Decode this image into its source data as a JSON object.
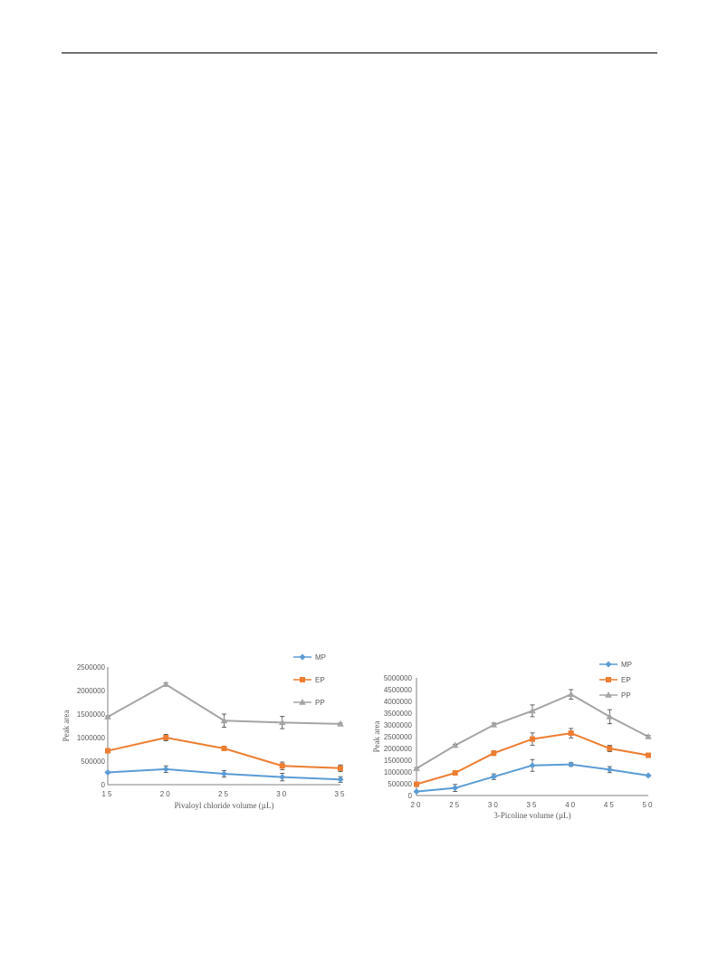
{
  "colors": {
    "MP": "#5b9bd5",
    "EP": "#ed7d31",
    "PP": "#a5a5a5",
    "axis": "#808080",
    "text": "#595959"
  },
  "chart_data": [
    {
      "type": "line",
      "xlabel": "Pivaloyl chloride volume (µL)",
      "ylabel": "Peak area",
      "categories": [
        "15",
        "20",
        "25",
        "30",
        "35"
      ],
      "yticks": [
        "0",
        "500000",
        "1000000",
        "1500000",
        "2000000",
        "2500000"
      ],
      "ylim": [
        0,
        2500000
      ],
      "legend_position": "top-right",
      "grid": false,
      "series": [
        {
          "name": "MP",
          "marker": "diamond",
          "values": [
            260000,
            330000,
            230000,
            160000,
            110000
          ],
          "errors": [
            20000,
            70000,
            70000,
            80000,
            60000
          ]
        },
        {
          "name": "EP",
          "marker": "square",
          "values": [
            720000,
            1000000,
            770000,
            400000,
            350000
          ],
          "errors": [
            30000,
            70000,
            40000,
            80000,
            70000
          ]
        },
        {
          "name": "PP",
          "marker": "triangle",
          "values": [
            1440000,
            2130000,
            1360000,
            1320000,
            1290000
          ],
          "errors": [
            20000,
            30000,
            140000,
            130000,
            20000
          ]
        }
      ]
    },
    {
      "type": "line",
      "xlabel": "3-Picoline volume (µL)",
      "ylabel": "Peak area",
      "categories": [
        "20",
        "25",
        "30",
        "35",
        "40",
        "45",
        "50"
      ],
      "yticks": [
        "0",
        "500000",
        "1000000",
        "1500000",
        "2000000",
        "2500000",
        "3000000",
        "3500000",
        "4000000",
        "4500000",
        "5000000"
      ],
      "ylim": [
        0,
        5000000
      ],
      "legend_position": "top-right",
      "grid": false,
      "series": [
        {
          "name": "MP",
          "marker": "diamond",
          "values": [
            170000,
            320000,
            800000,
            1280000,
            1320000,
            1100000,
            850000
          ],
          "errors": [
            30000,
            150000,
            120000,
            250000,
            80000,
            130000,
            40000
          ]
        },
        {
          "name": "EP",
          "marker": "square",
          "values": [
            480000,
            960000,
            1800000,
            2400000,
            2650000,
            2000000,
            1710000
          ],
          "errors": [
            40000,
            80000,
            100000,
            260000,
            200000,
            130000,
            50000
          ]
        },
        {
          "name": "PP",
          "marker": "triangle",
          "values": [
            1150000,
            2130000,
            3000000,
            3600000,
            4300000,
            3350000,
            2500000
          ],
          "errors": [
            40000,
            50000,
            80000,
            250000,
            200000,
            300000,
            50000
          ]
        }
      ]
    }
  ]
}
